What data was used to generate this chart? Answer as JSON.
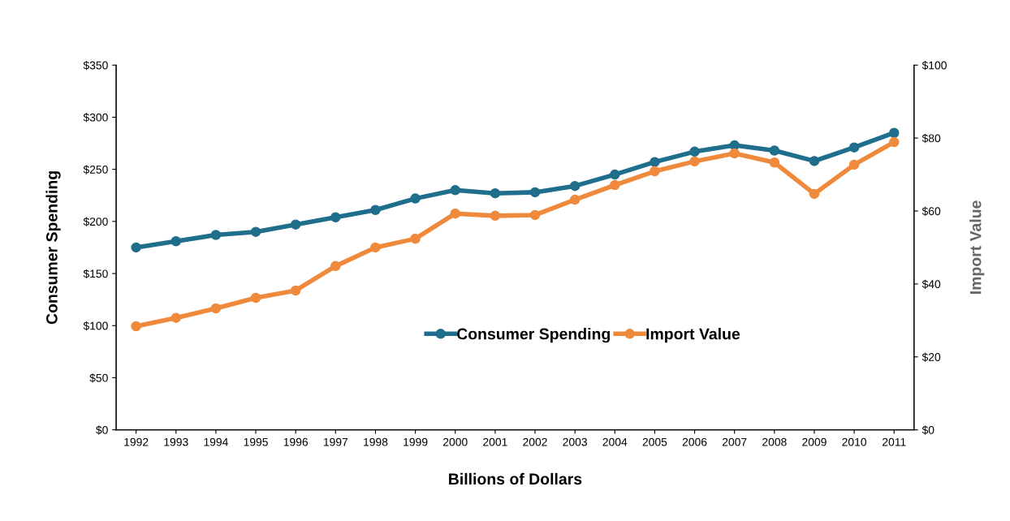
{
  "chart_data": {
    "type": "line",
    "xlabel": "Billions of Dollars",
    "ylabel": "Consumer Spending",
    "y2label": "Import Value",
    "categories": [
      "1992",
      "1993",
      "1994",
      "1995",
      "1996",
      "1997",
      "1998",
      "1999",
      "2000",
      "2001",
      "2002",
      "2003",
      "2004",
      "2005",
      "2006",
      "2007",
      "2008",
      "2009",
      "2010",
      "2011"
    ],
    "series": [
      {
        "name": "Consumer Spending",
        "color": "#1f6e8c",
        "values": [
          175,
          181,
          187,
          190,
          197,
          204,
          211,
          222,
          230,
          227,
          228,
          234,
          245,
          257,
          267,
          273,
          268,
          258,
          271,
          285
        ]
      },
      {
        "name": "Import Value",
        "color": "#ef8a3c",
        "axis": "y2",
        "values": [
          28.4,
          30.7,
          33.3,
          36.2,
          38.2,
          44.9,
          50,
          52.4,
          59.3,
          58.7,
          58.9,
          63.1,
          67.1,
          70.9,
          73.6,
          75.8,
          73.3,
          64.7,
          72.7,
          78.9
        ]
      }
    ],
    "ylim": [
      0,
      350
    ],
    "yticks": [
      {
        "value": 0,
        "label": "$0"
      },
      {
        "value": 50,
        "label": "$50"
      },
      {
        "value": 100,
        "label": "$100"
      },
      {
        "value": 150,
        "label": "$150"
      },
      {
        "value": 200,
        "label": "$200"
      },
      {
        "value": 250,
        "label": "$250"
      },
      {
        "value": 300,
        "label": "$300"
      },
      {
        "value": 350,
        "label": "$350"
      }
    ],
    "y2lim": [
      0,
      100
    ],
    "y2ticks": [
      {
        "value": 0,
        "label": "$0"
      },
      {
        "value": 20,
        "label": "$20"
      },
      {
        "value": 40,
        "label": "$40"
      },
      {
        "value": 60,
        "label": "$60"
      },
      {
        "value": 80,
        "label": "$80"
      },
      {
        "value": 100,
        "label": "$100"
      }
    ],
    "legend": "lower right",
    "marker": "circle",
    "line_style": "solid",
    "grid": false
  }
}
